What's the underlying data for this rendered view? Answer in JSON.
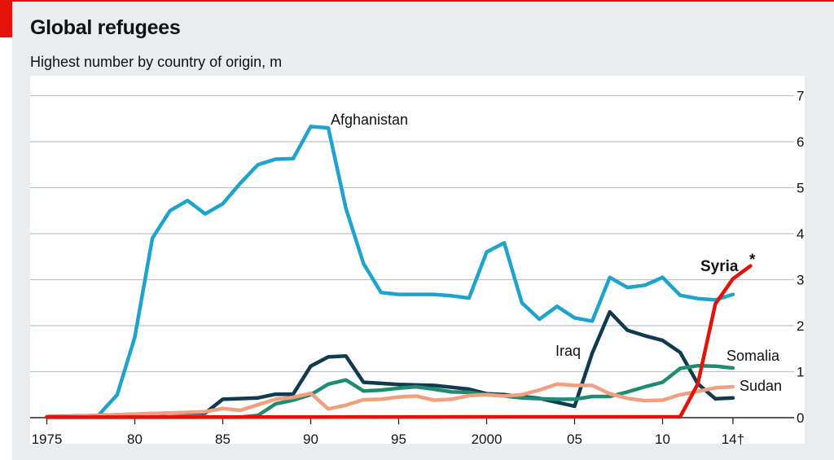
{
  "chart_data": {
    "type": "line",
    "title": "Global refugees",
    "subtitle": "Highest number by country of origin, m",
    "x_tick_labels": [
      {
        "year": 1975,
        "label": "1975"
      },
      {
        "year": 1980,
        "label": "80"
      },
      {
        "year": 1985,
        "label": "85"
      },
      {
        "year": 1990,
        "label": "90"
      },
      {
        "year": 1995,
        "label": "95"
      },
      {
        "year": 2000,
        "label": "2000"
      },
      {
        "year": 2005,
        "label": "05"
      },
      {
        "year": 2010,
        "label": "10"
      },
      {
        "year": 2014,
        "label": "14†"
      }
    ],
    "y_ticks": [
      0,
      1,
      2,
      3,
      4,
      5,
      6,
      7
    ],
    "xlim": [
      1974.1,
      2018.5
    ],
    "ylim": [
      0,
      7
    ],
    "ylabel_position": "right",
    "grid": true,
    "series": [
      {
        "name": "Afghanistan",
        "label": "Afghanistan",
        "color": "#1ea3cf",
        "x": [
          1978,
          1979,
          1980,
          1981,
          1982,
          1983,
          1984,
          1985,
          1986,
          1987,
          1988,
          1989,
          1990,
          1991,
          1992,
          1993,
          1994,
          1995,
          1996,
          1997,
          1998,
          1999,
          2000,
          2001,
          2002,
          2003,
          2004,
          2005,
          2006,
          2007,
          2008,
          2009,
          2010,
          2011,
          2012,
          2013,
          2014
        ],
        "y": [
          0.08,
          0.5,
          1.75,
          3.9,
          4.5,
          4.72,
          4.43,
          4.65,
          5.1,
          5.5,
          5.62,
          5.63,
          6.33,
          6.3,
          4.55,
          3.35,
          2.72,
          2.68,
          2.68,
          2.68,
          2.65,
          2.6,
          3.6,
          3.8,
          2.5,
          2.14,
          2.42,
          2.17,
          2.1,
          3.05,
          2.83,
          2.88,
          3.05,
          2.66,
          2.59,
          2.56,
          2.68
        ]
      },
      {
        "name": "Iraq",
        "label": "Iraq",
        "color": "#0f3b51",
        "x": [
          1975,
          1978,
          1982,
          1984,
          1985,
          1987,
          1988,
          1989,
          1990,
          1991,
          1992,
          1993,
          1995,
          1997,
          1999,
          2000,
          2001,
          2003,
          2005,
          2006,
          2007,
          2008,
          2009,
          2010,
          2011,
          2012,
          2013,
          2014
        ],
        "y": [
          0.02,
          0.05,
          0.1,
          0.1,
          0.4,
          0.43,
          0.51,
          0.51,
          1.12,
          1.32,
          1.34,
          0.77,
          0.72,
          0.7,
          0.62,
          0.52,
          0.5,
          0.42,
          0.25,
          1.4,
          2.3,
          1.9,
          1.78,
          1.68,
          1.42,
          0.74,
          0.41,
          0.43
        ]
      },
      {
        "name": "Somalia",
        "label": "Somalia",
        "color": "#1f8c72",
        "x": [
          1975,
          1986,
          1987,
          1988,
          1989,
          1990,
          1991,
          1992,
          1993,
          1994,
          1995,
          1996,
          1997,
          1998,
          1999,
          2000,
          2001,
          2002,
          2003,
          2004,
          2005,
          2006,
          2007,
          2008,
          2009,
          2010,
          2011,
          2012,
          2013,
          2014
        ],
        "y": [
          0.01,
          0.01,
          0.05,
          0.3,
          0.38,
          0.5,
          0.73,
          0.82,
          0.58,
          0.6,
          0.64,
          0.67,
          0.62,
          0.56,
          0.55,
          0.5,
          0.47,
          0.43,
          0.41,
          0.4,
          0.4,
          0.46,
          0.46,
          0.56,
          0.67,
          0.77,
          1.07,
          1.13,
          1.12,
          1.08
        ]
      },
      {
        "name": "Sudan",
        "label": "Sudan",
        "color": "#f0a07f",
        "x": [
          1975,
          1984,
          1985,
          1986,
          1987,
          1988,
          1989,
          1990,
          1991,
          1992,
          1993,
          1994,
          1995,
          1996,
          1997,
          1998,
          1999,
          2000,
          2001,
          2002,
          2003,
          2004,
          2005,
          2006,
          2007,
          2008,
          2009,
          2010,
          2011,
          2012,
          2013,
          2014
        ],
        "y": [
          0.01,
          0.13,
          0.2,
          0.16,
          0.28,
          0.4,
          0.44,
          0.53,
          0.19,
          0.27,
          0.39,
          0.4,
          0.45,
          0.47,
          0.38,
          0.4,
          0.48,
          0.5,
          0.47,
          0.5,
          0.6,
          0.73,
          0.7,
          0.7,
          0.52,
          0.42,
          0.37,
          0.38,
          0.5,
          0.57,
          0.65,
          0.67
        ]
      },
      {
        "name": "Syria",
        "label": "Syria",
        "marker": "*",
        "color": "#e3120b",
        "x": [
          1975,
          2011,
          2012,
          2013,
          2014,
          2015
        ],
        "y": [
          0.01,
          0.02,
          0.73,
          2.47,
          3.02,
          3.3
        ]
      }
    ]
  }
}
